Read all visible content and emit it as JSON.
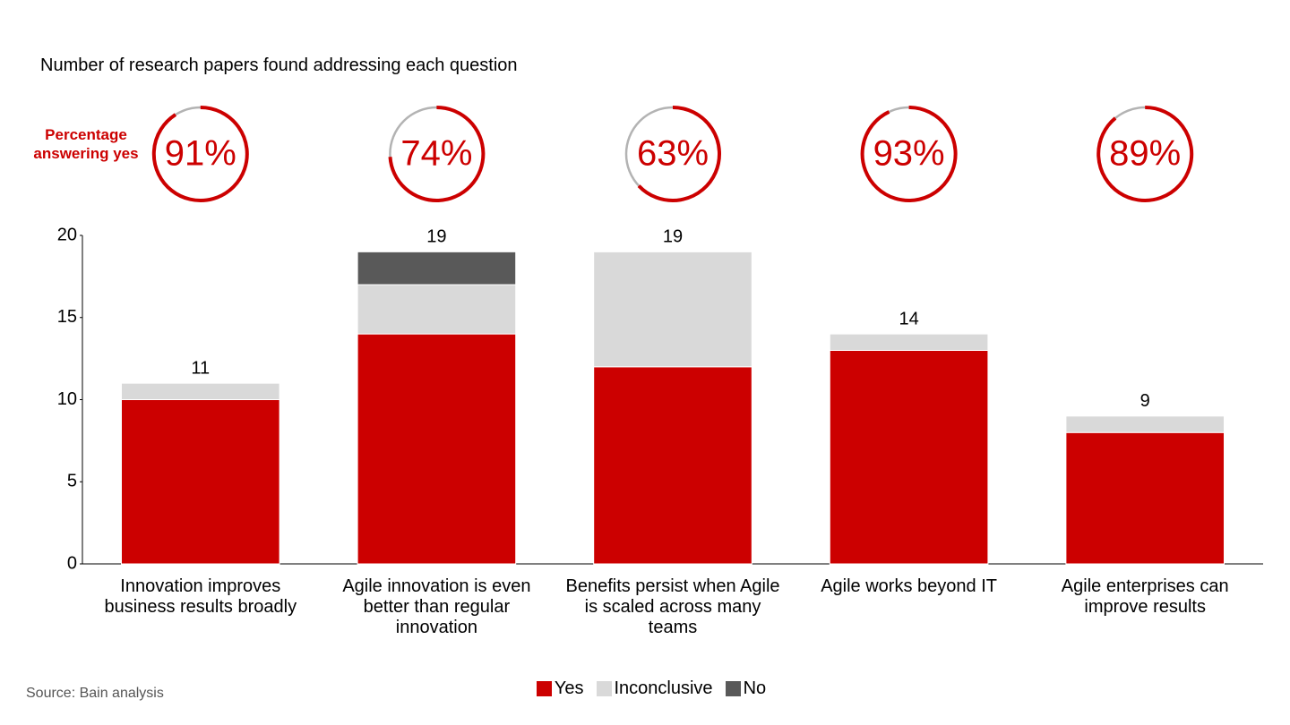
{
  "chart_data": {
    "type": "stacked_bar",
    "title": "Number of research papers found addressing each question",
    "categories": [
      "Innovation improves business results broadly",
      "Agile innovation is even better than regular innovation",
      "Benefits persist when Agile is scaled across many teams",
      "Agile works beyond IT",
      "Agile enterprises can improve results"
    ],
    "series": [
      {
        "name": "Yes",
        "color": "#cc0000",
        "values": [
          10,
          14,
          12,
          13,
          8
        ]
      },
      {
        "name": "Inconclusive",
        "color": "#d9d9d9",
        "values": [
          1,
          3,
          7,
          1,
          1
        ]
      },
      {
        "name": "No",
        "color": "#595959",
        "values": [
          0,
          2,
          0,
          0,
          0
        ]
      }
    ],
    "totals": [
      11,
      19,
      19,
      14,
      9
    ],
    "percentages": {
      "label": "Percentage answering yes",
      "color": "#cc0000",
      "rest_color": "#b3b3b3",
      "values": [
        91,
        74,
        63,
        93,
        89
      ],
      "value_labels": [
        "91%",
        "74%",
        "63%",
        "93%",
        "89%"
      ]
    },
    "ylim": [
      0,
      20
    ],
    "yticks": [
      0,
      5,
      10,
      15,
      20
    ],
    "grid": false,
    "legend": "bottom",
    "source": "Source: Bain analysis"
  }
}
